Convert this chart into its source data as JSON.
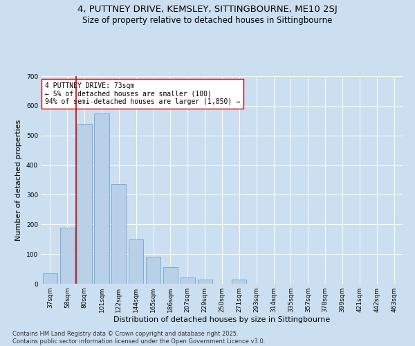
{
  "title": "4, PUTTNEY DRIVE, KEMSLEY, SITTINGBOURNE, ME10 2SJ",
  "subtitle": "Size of property relative to detached houses in Sittingbourne",
  "xlabel": "Distribution of detached houses by size in Sittingbourne",
  "ylabel": "Number of detached properties",
  "categories": [
    "37sqm",
    "58sqm",
    "80sqm",
    "101sqm",
    "122sqm",
    "144sqm",
    "165sqm",
    "186sqm",
    "207sqm",
    "229sqm",
    "250sqm",
    "271sqm",
    "293sqm",
    "314sqm",
    "335sqm",
    "357sqm",
    "378sqm",
    "399sqm",
    "421sqm",
    "442sqm",
    "463sqm"
  ],
  "values": [
    35,
    190,
    540,
    575,
    335,
    150,
    90,
    55,
    20,
    15,
    0,
    15,
    0,
    0,
    0,
    0,
    0,
    0,
    0,
    0,
    0
  ],
  "bar_color": "#b8d0e8",
  "bar_edgecolor": "#7aadd4",
  "highlight_color": "#cc0000",
  "red_line_x": 1.5,
  "annotation_text": "4 PUTTNEY DRIVE: 73sqm\n← 5% of detached houses are smaller (100)\n94% of semi-detached houses are larger (1,850) →",
  "annotation_box_facecolor": "#ffffff",
  "annotation_box_edgecolor": "#cc0000",
  "ylim": [
    0,
    700
  ],
  "yticks": [
    0,
    100,
    200,
    300,
    400,
    500,
    600,
    700
  ],
  "background_color": "#ccdff0",
  "plot_bg_color": "#ccdff0",
  "footer": "Contains HM Land Registry data © Crown copyright and database right 2025.\nContains public sector information licensed under the Open Government Licence v3.0.",
  "title_fontsize": 9.5,
  "subtitle_fontsize": 8.5,
  "axis_label_fontsize": 8,
  "tick_fontsize": 6.5,
  "annotation_fontsize": 7,
  "footer_fontsize": 6
}
